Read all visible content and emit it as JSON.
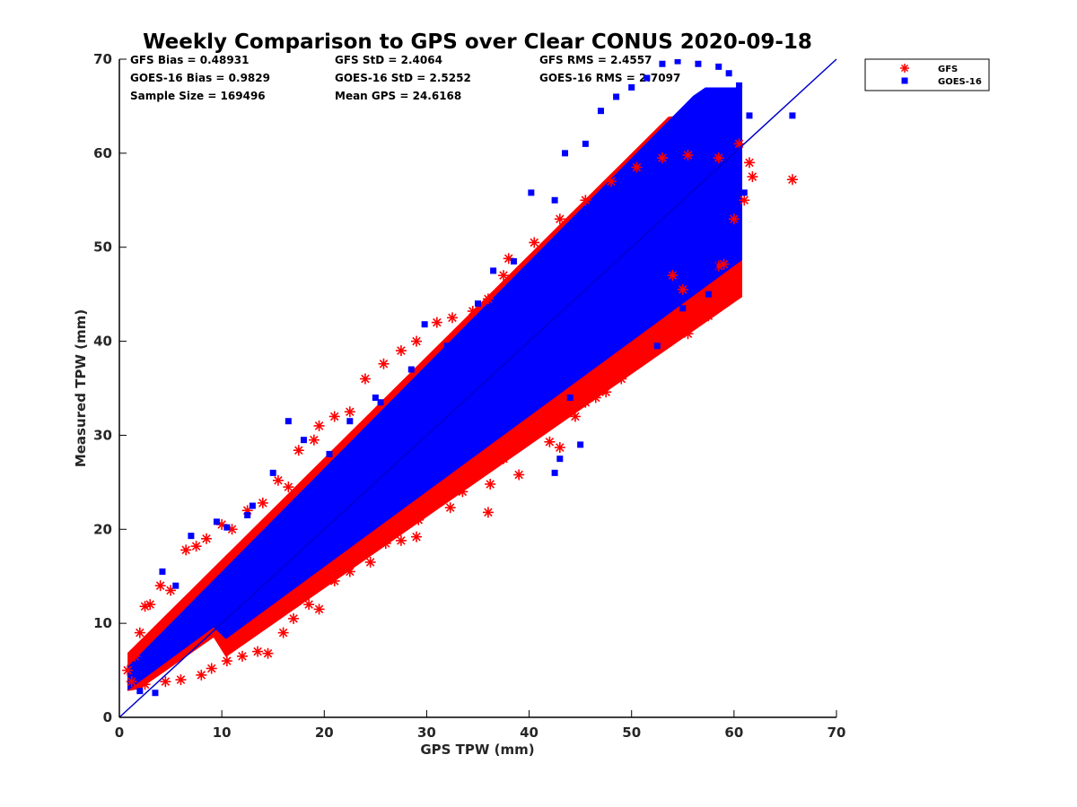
{
  "chart_data": {
    "type": "scatter",
    "title": "Weekly Comparison to GPS over Clear CONUS 2020-09-18",
    "xlabel": "GPS TPW (mm)",
    "ylabel": "Measured TPW (mm)",
    "xlim": [
      0,
      70
    ],
    "ylim": [
      0,
      70
    ],
    "xticks": [
      0,
      10,
      20,
      30,
      40,
      50,
      60,
      70
    ],
    "yticks": [
      0,
      10,
      20,
      30,
      40,
      50,
      60,
      70
    ],
    "grid": false,
    "legend_placement": "outside-top-right",
    "reference_line": {
      "from": [
        0,
        0
      ],
      "to": [
        70,
        70
      ],
      "color": "#0000cc"
    },
    "statistics": [
      [
        "GFS Bias = 0.48931",
        "GFS StD = 2.4064",
        "GFS RMS = 2.4557"
      ],
      [
        "GOES-16 Bias = 0.9829",
        "GOES-16 StD = 2.5252",
        "GOES-16 RMS = 2.7097"
      ],
      [
        "Sample Size = 169496",
        "Mean GPS = 24.6168",
        ""
      ]
    ],
    "series": [
      {
        "name": "GFS",
        "marker": "asterisk",
        "color": "#ff0000",
        "points": [
          [
            0.8,
            5.0
          ],
          [
            1.2,
            3.8
          ],
          [
            1.5,
            6.5
          ],
          [
            2.0,
            9.0
          ],
          [
            2.5,
            11.8
          ],
          [
            3.0,
            12.0
          ],
          [
            4.0,
            14.0
          ],
          [
            5.0,
            13.5
          ],
          [
            6.5,
            17.8
          ],
          [
            7.5,
            18.2
          ],
          [
            8.5,
            19.0
          ],
          [
            10.0,
            20.5
          ],
          [
            11.0,
            20.0
          ],
          [
            12.5,
            22.0
          ],
          [
            14.0,
            22.8
          ],
          [
            15.5,
            25.2
          ],
          [
            16.5,
            24.5
          ],
          [
            17.5,
            28.4
          ],
          [
            19.0,
            29.5
          ],
          [
            19.5,
            31.0
          ],
          [
            21.0,
            32.0
          ],
          [
            22.5,
            32.5
          ],
          [
            24.0,
            36.0
          ],
          [
            25.8,
            37.6
          ],
          [
            27.5,
            39.0
          ],
          [
            29.0,
            40.0
          ],
          [
            31.0,
            42.0
          ],
          [
            32.5,
            42.5
          ],
          [
            34.5,
            43.2
          ],
          [
            36.0,
            44.5
          ],
          [
            37.5,
            47.0
          ],
          [
            38.0,
            48.8
          ],
          [
            40.5,
            50.5
          ],
          [
            43.0,
            53.0
          ],
          [
            45.5,
            55.0
          ],
          [
            48.0,
            57.0
          ],
          [
            50.5,
            58.5
          ],
          [
            53.0,
            59.5
          ],
          [
            55.5,
            59.8
          ],
          [
            58.5,
            59.5
          ],
          [
            60.5,
            61.0
          ],
          [
            61.5,
            59.0
          ],
          [
            61.8,
            57.5
          ],
          [
            65.7,
            57.2
          ],
          [
            2.5,
            3.5
          ],
          [
            4.5,
            3.8
          ],
          [
            6.0,
            4.0
          ],
          [
            8.0,
            4.5
          ],
          [
            9.0,
            5.2
          ],
          [
            10.5,
            6.0
          ],
          [
            12.0,
            6.5
          ],
          [
            13.5,
            7.0
          ],
          [
            14.5,
            6.8
          ],
          [
            16.0,
            9.0
          ],
          [
            17.0,
            10.5
          ],
          [
            18.5,
            12.0
          ],
          [
            19.5,
            11.5
          ],
          [
            21.0,
            14.5
          ],
          [
            22.5,
            15.5
          ],
          [
            24.5,
            16.5
          ],
          [
            26.0,
            18.5
          ],
          [
            27.5,
            18.8
          ],
          [
            29.0,
            19.2
          ],
          [
            29.2,
            21.0
          ],
          [
            30.5,
            22.5
          ],
          [
            32.3,
            22.3
          ],
          [
            33.5,
            24.0
          ],
          [
            35.0,
            26.0
          ],
          [
            36.0,
            21.8
          ],
          [
            36.2,
            24.8
          ],
          [
            37.5,
            27.5
          ],
          [
            39.0,
            25.8
          ],
          [
            39.5,
            29.5
          ],
          [
            42.0,
            29.3
          ],
          [
            43.0,
            28.7
          ],
          [
            44.5,
            32.0
          ],
          [
            45.5,
            33.5
          ],
          [
            46.5,
            34.0
          ],
          [
            47.5,
            34.6
          ],
          [
            49.0,
            36.0
          ],
          [
            50.5,
            38.0
          ],
          [
            52.0,
            39.5
          ],
          [
            53.0,
            40.8
          ],
          [
            55.5,
            40.8
          ],
          [
            57.5,
            42.7
          ],
          [
            58.0,
            44.5
          ],
          [
            59.0,
            48.2
          ],
          [
            58.5,
            48.0
          ],
          [
            60.0,
            53.0
          ],
          [
            61.0,
            55.0
          ],
          [
            55.0,
            45.5
          ],
          [
            56.0,
            43.0
          ],
          [
            54.0,
            47.0
          ]
        ]
      },
      {
        "name": "GOES-16",
        "marker": "square",
        "color": "#0000ff",
        "points": [
          [
            2.0,
            2.8
          ],
          [
            3.5,
            2.6
          ],
          [
            4.2,
            15.5
          ],
          [
            5.5,
            14.0
          ],
          [
            7.0,
            19.3
          ],
          [
            9.5,
            20.8
          ],
          [
            12.5,
            21.5
          ],
          [
            15.0,
            26.0
          ],
          [
            16.5,
            31.5
          ],
          [
            18.0,
            29.5
          ],
          [
            20.5,
            28.0
          ],
          [
            22.5,
            31.5
          ],
          [
            25.0,
            34.0
          ],
          [
            28.5,
            37.0
          ],
          [
            29.8,
            41.8
          ],
          [
            32.0,
            39.5
          ],
          [
            35.0,
            44.0
          ],
          [
            36.5,
            47.5
          ],
          [
            38.5,
            48.5
          ],
          [
            40.2,
            55.8
          ],
          [
            42.5,
            55.0
          ],
          [
            43.5,
            60.0
          ],
          [
            45.5,
            61.0
          ],
          [
            47.0,
            64.5
          ],
          [
            48.5,
            66.0
          ],
          [
            50.0,
            67.0
          ],
          [
            51.5,
            68.0
          ],
          [
            53.0,
            69.5
          ],
          [
            54.5,
            69.8
          ],
          [
            56.5,
            69.5
          ],
          [
            58.5,
            69.2
          ],
          [
            59.5,
            68.5
          ],
          [
            60.5,
            67.2
          ],
          [
            61.5,
            64.0
          ],
          [
            65.7,
            64.0
          ],
          [
            44.0,
            34.0
          ],
          [
            45.0,
            29.0
          ],
          [
            42.5,
            26.0
          ],
          [
            43.0,
            27.5
          ],
          [
            46.0,
            38.0
          ],
          [
            52.5,
            39.5
          ],
          [
            55.0,
            43.5
          ],
          [
            57.5,
            45.0
          ],
          [
            58.0,
            48.0
          ],
          [
            60.0,
            56.0
          ],
          [
            61.0,
            55.8
          ],
          [
            10.5,
            20.2
          ],
          [
            13.0,
            22.5
          ],
          [
            25.5,
            33.5
          ],
          [
            31.0,
            34.5
          ]
        ]
      }
    ]
  }
}
